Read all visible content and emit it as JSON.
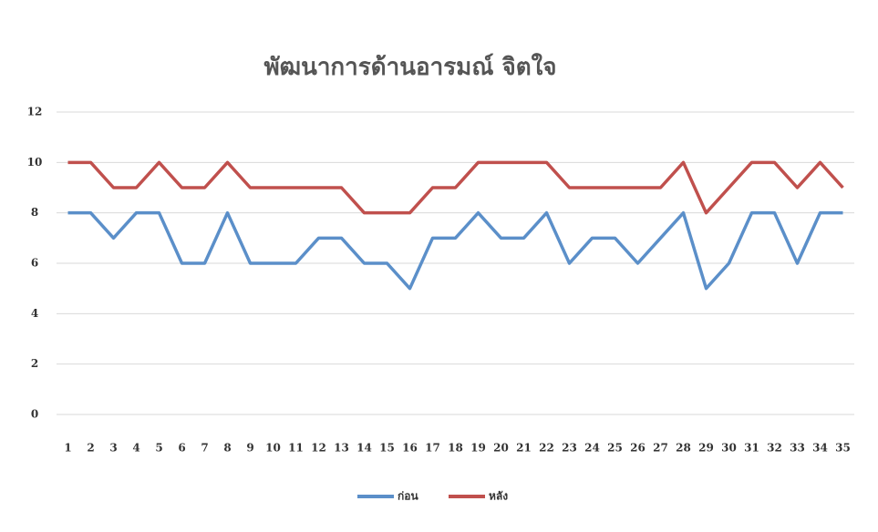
{
  "chart_data": {
    "type": "line",
    "title": "พัฒนาการด้านอารมณ์ จิตใจ",
    "categories": [
      "1",
      "2",
      "3",
      "4",
      "5",
      "6",
      "7",
      "8",
      "9",
      "10",
      "11",
      "12",
      "13",
      "14",
      "15",
      "16",
      "17",
      "18",
      "19",
      "20",
      "21",
      "22",
      "23",
      "24",
      "25",
      "26",
      "27",
      "28",
      "29",
      "30",
      "31",
      "32",
      "33",
      "34",
      "35"
    ],
    "series": [
      {
        "name": "ก่อน",
        "color": "#5b8fc9",
        "values": [
          8,
          8,
          7,
          8,
          8,
          6,
          6,
          8,
          6,
          6,
          6,
          7,
          7,
          6,
          6,
          5,
          7,
          7,
          8,
          7,
          7,
          8,
          6,
          7,
          7,
          6,
          7,
          8,
          5,
          6,
          8,
          8,
          6,
          8,
          8
        ]
      },
      {
        "name": "หลัง",
        "color": "#c0504d",
        "values": [
          10,
          10,
          9,
          9,
          10,
          9,
          9,
          10,
          9,
          9,
          9,
          9,
          9,
          8,
          8,
          8,
          9,
          9,
          10,
          10,
          10,
          10,
          9,
          9,
          9,
          9,
          9,
          10,
          8,
          9,
          10,
          10,
          9,
          10,
          9
        ]
      }
    ],
    "ylim": [
      0,
      12
    ],
    "yticks": [
      0,
      2,
      4,
      6,
      8,
      10,
      12
    ],
    "grid": true,
    "legend": "bottom"
  }
}
